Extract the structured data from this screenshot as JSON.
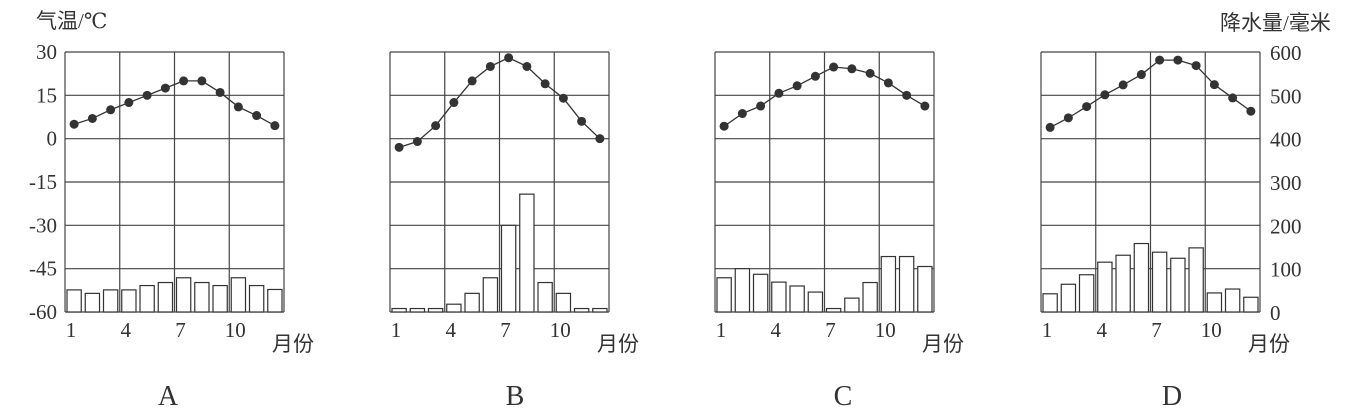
{
  "temp_axis_label": "气温/℃",
  "precip_axis_label": "降水量/毫米",
  "month_label": "月份",
  "temp_ticks": [
    "30",
    "15",
    "0",
    "-15",
    "-30",
    "-45",
    "-60"
  ],
  "precip_ticks": [
    "600",
    "500",
    "400",
    "300",
    "200",
    "100",
    "0"
  ],
  "month_ticks": [
    "1",
    "4",
    "7",
    "10"
  ],
  "colors": {
    "line": "#333333",
    "grid": "#444444",
    "dot": "#333333",
    "bar_fill": "#ffffff"
  },
  "chart_data": [
    {
      "type": "bar+line",
      "title": "A",
      "xlabel": "月份",
      "ylabel_left": "气温/℃",
      "ylabel_right": "降水量/毫米",
      "ylim_temp": [
        -60,
        30
      ],
      "ylim_precip": [
        0,
        600
      ],
      "grid": true,
      "months": [
        1,
        2,
        3,
        4,
        5,
        6,
        7,
        8,
        9,
        10,
        11,
        12
      ],
      "temperature": [
        5,
        7,
        10,
        12.5,
        15,
        17.5,
        20,
        20,
        16,
        11,
        8,
        4.5
      ],
      "precipitation": [
        51,
        43,
        51,
        51,
        61,
        68,
        79,
        68,
        61,
        79,
        61,
        52
      ]
    },
    {
      "type": "bar+line",
      "title": "B",
      "xlabel": "月份",
      "ylabel_left": "气温/℃",
      "ylabel_right": "降水量/毫米",
      "ylim_temp": [
        -60,
        30
      ],
      "ylim_precip": [
        0,
        600
      ],
      "grid": true,
      "months": [
        1,
        2,
        3,
        4,
        5,
        6,
        7,
        8,
        9,
        10,
        11,
        12
      ],
      "temperature": [
        -3,
        -1,
        4.5,
        12.5,
        20,
        25,
        28,
        25,
        19,
        14,
        6,
        0
      ],
      "precipitation": [
        8,
        8,
        8,
        18,
        43,
        79,
        200,
        272,
        68,
        43,
        8,
        8
      ]
    },
    {
      "type": "bar+line",
      "title": "C",
      "xlabel": "月份",
      "ylabel_left": "气温/℃",
      "ylabel_right": "降水量/毫米",
      "ylim_temp": [
        -60,
        30
      ],
      "ylim_precip": [
        0,
        600
      ],
      "grid": true,
      "months": [
        1,
        2,
        3,
        4,
        5,
        6,
        7,
        8,
        9,
        10,
        11,
        12
      ],
      "temperature": [
        4.3,
        8.7,
        11.3,
        15.7,
        18.3,
        21.6,
        24.8,
        24.2,
        22.6,
        19.3,
        15,
        11.3
      ],
      "precipitation": [
        79,
        100,
        87,
        69,
        60,
        46,
        8,
        32,
        68,
        128,
        128,
        105
      ]
    },
    {
      "type": "bar+line",
      "title": "D",
      "xlabel": "月份",
      "ylabel_left": "气温/℃",
      "ylabel_right": "降水量/毫米",
      "ylim_temp": [
        -60,
        30
      ],
      "ylim_precip": [
        0,
        600
      ],
      "grid": true,
      "months": [
        1,
        2,
        3,
        4,
        5,
        6,
        7,
        8,
        9,
        10,
        11,
        12
      ],
      "temperature": [
        3.9,
        7.2,
        11.1,
        15.2,
        18.6,
        22.2,
        27.2,
        27.2,
        25.3,
        18.7,
        14.1,
        9.5
      ],
      "precipitation": [
        42,
        64,
        86,
        115,
        131,
        158,
        138,
        124,
        148,
        44,
        53,
        34
      ]
    }
  ]
}
